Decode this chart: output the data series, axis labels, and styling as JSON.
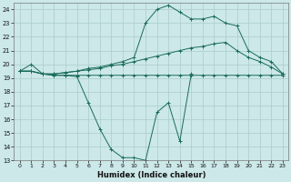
{
  "xlabel": "Humidex (Indice chaleur)",
  "bg_color": "#cce8e8",
  "grid_color": "#aacccc",
  "line_color": "#1a6b5a",
  "xlim": [
    -0.5,
    23.5
  ],
  "ylim": [
    13,
    24.5
  ],
  "yticks": [
    13,
    14,
    15,
    16,
    17,
    18,
    19,
    20,
    21,
    22,
    23,
    24
  ],
  "xticks": [
    0,
    1,
    2,
    3,
    4,
    5,
    6,
    7,
    8,
    9,
    10,
    11,
    12,
    13,
    14,
    15,
    16,
    17,
    18,
    19,
    20,
    21,
    22,
    23
  ],
  "series": [
    {
      "x": [
        0,
        1,
        2,
        3,
        4,
        5,
        6,
        7,
        8,
        9,
        10,
        11,
        12,
        13,
        14,
        15
      ],
      "y": [
        19.5,
        20.0,
        19.3,
        19.2,
        19.2,
        19.1,
        17.2,
        15.3,
        13.8,
        13.2,
        13.2,
        13.0,
        16.5,
        17.2,
        14.4,
        19.3
      ]
    },
    {
      "x": [
        0,
        1,
        2,
        3,
        4,
        5,
        6,
        7,
        8,
        9,
        10,
        11,
        12,
        13,
        14,
        15,
        16,
        17,
        18,
        19,
        20,
        21,
        22,
        23
      ],
      "y": [
        19.5,
        19.5,
        19.3,
        19.2,
        19.2,
        19.2,
        19.2,
        19.2,
        19.2,
        19.2,
        19.2,
        19.2,
        19.2,
        19.2,
        19.2,
        19.2,
        19.2,
        19.2,
        19.2,
        19.2,
        19.2,
        19.2,
        19.2,
        19.2
      ]
    },
    {
      "x": [
        0,
        1,
        2,
        3,
        4,
        5,
        6,
        7,
        8,
        9,
        10,
        11,
        12,
        13,
        14,
        15,
        16,
        17,
        18,
        19,
        20,
        21,
        22,
        23
      ],
      "y": [
        19.5,
        19.5,
        19.3,
        19.3,
        19.4,
        19.5,
        19.6,
        19.7,
        19.9,
        20.0,
        20.2,
        20.4,
        20.6,
        20.8,
        21.0,
        21.2,
        21.3,
        21.5,
        21.6,
        21.0,
        20.5,
        20.2,
        19.8,
        19.3
      ]
    },
    {
      "x": [
        0,
        1,
        2,
        3,
        4,
        5,
        6,
        7,
        8,
        9,
        10,
        11,
        12,
        13,
        14,
        15,
        16,
        17,
        18,
        19,
        20,
        21,
        22,
        23
      ],
      "y": [
        19.5,
        19.5,
        19.3,
        19.3,
        19.4,
        19.5,
        19.7,
        19.8,
        20.0,
        20.2,
        20.5,
        23.0,
        24.0,
        24.3,
        23.8,
        23.3,
        23.3,
        23.5,
        23.0,
        22.8,
        21.0,
        20.5,
        20.2,
        19.3
      ]
    }
  ]
}
